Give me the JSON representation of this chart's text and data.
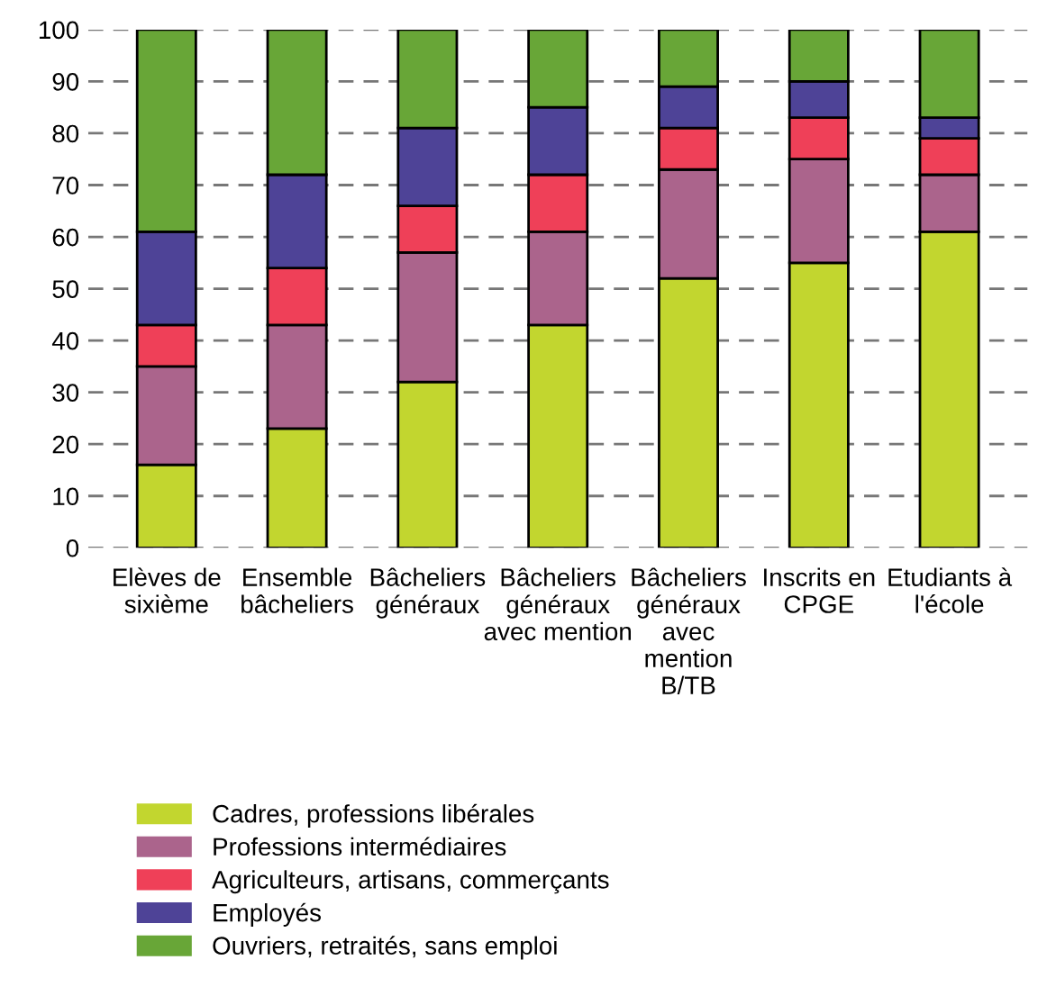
{
  "chart_data": {
    "type": "bar",
    "stacked": true,
    "categories": [
      "Elèves de\nsixième",
      "Ensemble\nbâcheliers",
      "Bâcheliers\ngénéraux",
      "Bâcheliers\ngénéraux\navec mention",
      "Bâcheliers\ngénéraux\navec\nmention\nB/TB",
      "Inscrits en\nCPGE",
      "Etudiants à\nl'école"
    ],
    "series": [
      {
        "name": "Cadres, professions libérales",
        "color": "#c2d62f",
        "values": [
          16,
          23,
          32,
          43,
          52,
          55,
          61
        ]
      },
      {
        "name": "Professions intermédiaires",
        "color": "#ab648c",
        "values": [
          19,
          20,
          25,
          18,
          21,
          20,
          11
        ]
      },
      {
        "name": "Agriculteurs, artisans, commerçants",
        "color": "#ef4058",
        "values": [
          8,
          11,
          9,
          11,
          8,
          8,
          7
        ]
      },
      {
        "name": "Employés",
        "color": "#4e4397",
        "values": [
          18,
          18,
          15,
          13,
          8,
          7,
          4
        ]
      },
      {
        "name": "Ouvriers, retraités, sans emploi",
        "color": "#68a637",
        "values": [
          39,
          28,
          19,
          15,
          11,
          10,
          17
        ]
      }
    ],
    "ylim": [
      0,
      100
    ],
    "yticks": [
      0,
      10,
      20,
      30,
      40,
      50,
      60,
      70,
      80,
      90,
      100
    ],
    "grid": "y",
    "legend": "bottom left"
  }
}
